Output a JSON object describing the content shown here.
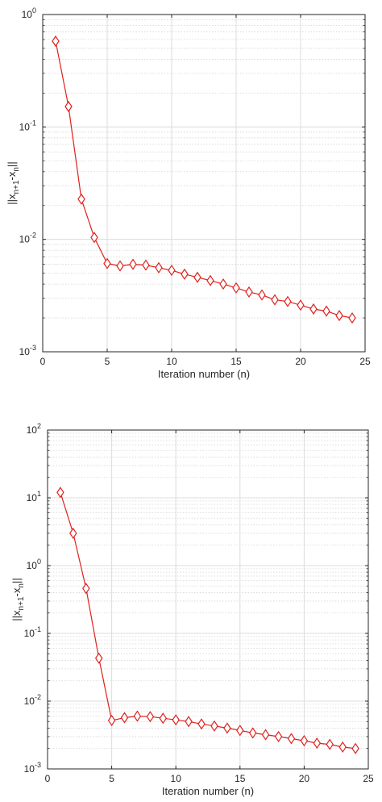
{
  "chart_data": [
    {
      "type": "line",
      "xlabel": "Iteration number (n)",
      "ylabel": {
        "main": "||x",
        "sub1": "n+1",
        "mid": "-x",
        "sub2": "n",
        "end": "||"
      },
      "xlim": [
        0,
        25
      ],
      "ylim": [
        0.001,
        1
      ],
      "y_scale": "log",
      "grid": true,
      "xticks": [
        "0",
        "5",
        "10",
        "15",
        "20",
        "25"
      ],
      "yticks": [
        {
          "base": "10",
          "exp": "0"
        },
        {
          "base": "10",
          "exp": "-1"
        },
        {
          "base": "10",
          "exp": "-2"
        },
        {
          "base": "10",
          "exp": "-3"
        }
      ],
      "series": [
        {
          "color": "#e0201b",
          "marker": "diamond",
          "x": [
            1,
            2,
            3,
            4,
            5,
            6,
            7,
            8,
            9,
            10,
            11,
            12,
            13,
            14,
            15,
            16,
            17,
            18,
            19,
            20,
            21,
            22,
            23,
            24
          ],
          "values": [
            0.58,
            0.152,
            0.0228,
            0.0104,
            0.0061,
            0.0058,
            0.006,
            0.0059,
            0.0056,
            0.0053,
            0.0049,
            0.0046,
            0.0043,
            0.004,
            0.0037,
            0.0034,
            0.0032,
            0.0029,
            0.0028,
            0.0026,
            0.0024,
            0.0023,
            0.0021,
            0.002
          ]
        }
      ]
    },
    {
      "type": "line",
      "xlabel": "Iteration number (n)",
      "ylabel": {
        "main": "||x",
        "sub1": "n+1",
        "mid": "-x",
        "sub2": "n",
        "end": "||"
      },
      "xlim": [
        0,
        25
      ],
      "ylim": [
        0.001,
        100
      ],
      "y_scale": "log",
      "grid": true,
      "xticks": [
        "0",
        "5",
        "10",
        "15",
        "20",
        "25"
      ],
      "yticks": [
        {
          "base": "10",
          "exp": "2"
        },
        {
          "base": "10",
          "exp": "1"
        },
        {
          "base": "10",
          "exp": "0"
        },
        {
          "base": "10",
          "exp": "-1"
        },
        {
          "base": "10",
          "exp": "-2"
        },
        {
          "base": "10",
          "exp": "-3"
        }
      ],
      "series": [
        {
          "color": "#e0201b",
          "marker": "diamond",
          "x": [
            1,
            2,
            3,
            4,
            5,
            6,
            7,
            8,
            9,
            10,
            11,
            12,
            13,
            14,
            15,
            16,
            17,
            18,
            19,
            20,
            21,
            22,
            23,
            24
          ],
          "values": [
            12.0,
            3.0,
            0.46,
            0.043,
            0.0052,
            0.0057,
            0.006,
            0.0059,
            0.0056,
            0.0053,
            0.005,
            0.0046,
            0.0043,
            0.004,
            0.0037,
            0.0034,
            0.0032,
            0.003,
            0.0028,
            0.0026,
            0.0024,
            0.0023,
            0.0021,
            0.002
          ]
        }
      ]
    }
  ]
}
